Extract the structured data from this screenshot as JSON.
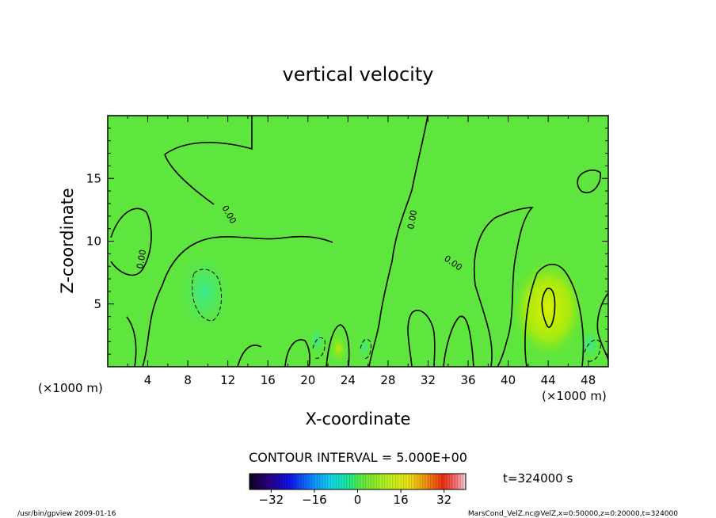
{
  "chart_data": {
    "type": "heatmap",
    "title": "vertical velocity",
    "xlabel": "X-coordinate",
    "ylabel": "Z-coordinate",
    "x_unit": "(×1000 m)",
    "y_unit": "(×1000 m)",
    "xlim": [
      0,
      50
    ],
    "ylim": [
      0,
      20
    ],
    "x_ticks": [
      4,
      8,
      12,
      16,
      20,
      24,
      28,
      32,
      36,
      40,
      44,
      48
    ],
    "y_ticks": [
      5,
      10,
      15
    ],
    "contour_labels": [
      "0.00",
      "0.00",
      "0.00",
      "0.00"
    ],
    "contour_interval_text": "CONTOUR INTERVAL = 5.000E+00",
    "time_text": "t=324000 s",
    "colorbar": {
      "min": -40,
      "max": 40,
      "ticks": [
        -32,
        -16,
        0,
        16,
        32
      ]
    },
    "features": [
      {
        "x": 9.5,
        "z": 6.0,
        "value": -5
      },
      {
        "x": 43.5,
        "z": 4.5,
        "value": 10
      },
      {
        "x": 23.0,
        "z": 1.5,
        "value": 5
      }
    ]
  },
  "footer": {
    "left": "/usr/bin/gpview   2009-01-16",
    "right": "MarsCond_VelZ.nc@VelZ,x=0:50000,z=0:20000,t=324000"
  }
}
